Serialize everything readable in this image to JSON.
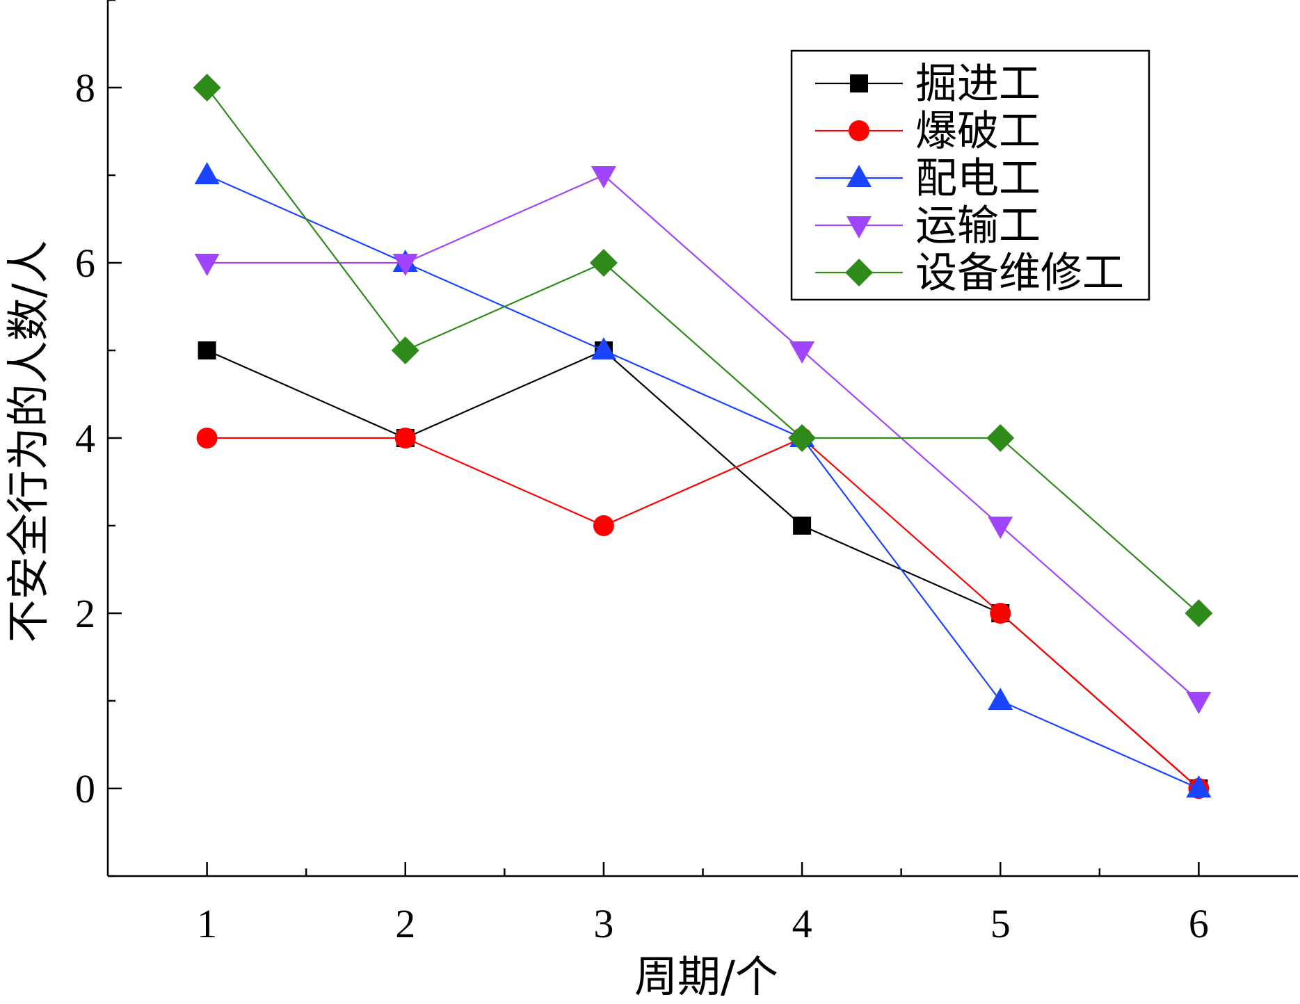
{
  "chart_data": {
    "type": "line",
    "title": "",
    "xlabel": "周期/个",
    "ylabel": "不安全行为的人数/人",
    "x": [
      1,
      2,
      3,
      4,
      5,
      6
    ],
    "x_ticks": [
      "1",
      "2",
      "3",
      "4",
      "5",
      "6"
    ],
    "y_ticks": [
      "0",
      "2",
      "4",
      "6",
      "8"
    ],
    "xlim": [
      0.5,
      6.5
    ],
    "ylim": [
      -1,
      9
    ],
    "grid": false,
    "legend_position": "top-right",
    "series": [
      {
        "name": "掘进工",
        "values": [
          5,
          4,
          5,
          3,
          2,
          0
        ],
        "color": "#000000",
        "marker": "square"
      },
      {
        "name": "爆破工",
        "values": [
          4,
          4,
          3,
          4,
          2,
          0
        ],
        "color": "#ff0000",
        "marker": "circle"
      },
      {
        "name": "配电工",
        "values": [
          7,
          6,
          5,
          4,
          1,
          0
        ],
        "color": "#1a44ff",
        "marker": "triangle-up"
      },
      {
        "name": "运输工",
        "values": [
          6,
          6,
          7,
          5,
          3,
          1
        ],
        "color": "#a044ff",
        "marker": "triangle-down"
      },
      {
        "name": "设备维修工",
        "values": [
          8,
          5,
          6,
          4,
          4,
          2
        ],
        "color": "#2e8b1a",
        "marker": "diamond"
      }
    ]
  }
}
